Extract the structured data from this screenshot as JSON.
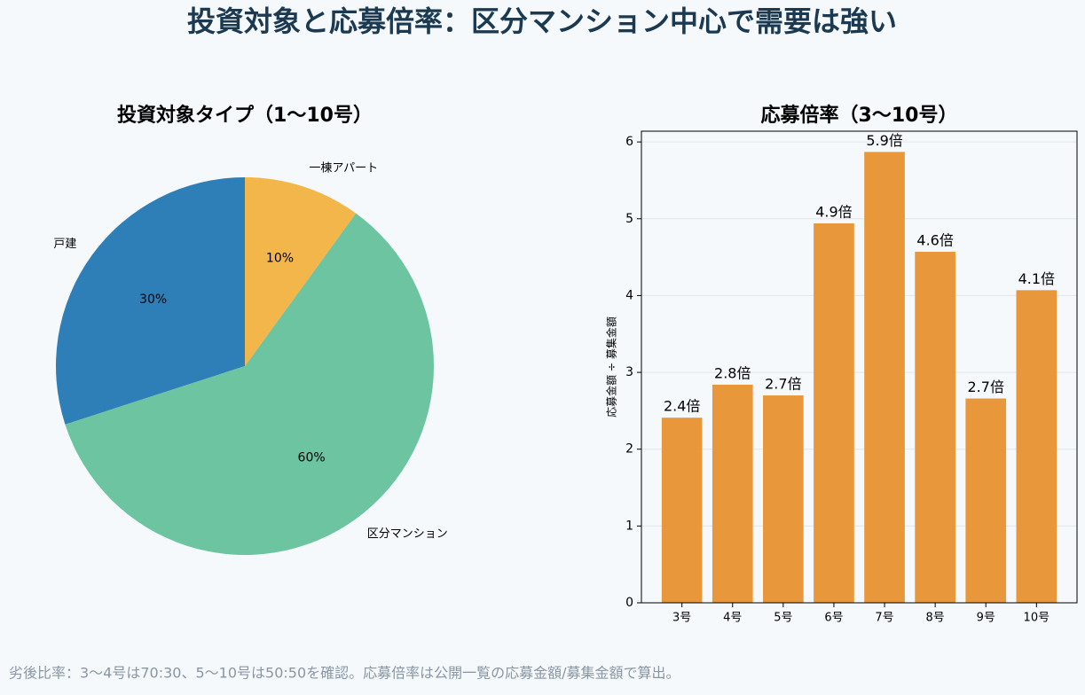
{
  "title": "投資対象と応募倍率：区分マンション中心で需要は強い",
  "note": "劣後比率：3〜4号は70:30、5〜10号は50:50を確認。応募倍率は公開一覧の応募金額/募集金額で算出。",
  "chart_data": [
    {
      "type": "pie",
      "title": "投資対象タイプ（1〜10号）",
      "categories": [
        "戸建",
        "区分マンション",
        "一棟アパート"
      ],
      "values": [
        30,
        60,
        10
      ],
      "value_labels": [
        "30%",
        "60%",
        "10%"
      ],
      "colors": [
        "#2e7fb8",
        "#6cc4a1",
        "#f2b64a"
      ]
    },
    {
      "type": "bar",
      "title": "応募倍率（3〜10号）",
      "ylabel": "応募金額 ÷ 募集金額",
      "categories": [
        "3号",
        "4号",
        "5号",
        "6号",
        "7号",
        "8号",
        "9号",
        "10号"
      ],
      "values": [
        2.41,
        2.84,
        2.7,
        4.94,
        5.87,
        4.57,
        2.66,
        4.07
      ],
      "value_labels": [
        "2.4倍",
        "2.8倍",
        "2.7倍",
        "4.9倍",
        "5.9倍",
        "4.6倍",
        "2.7倍",
        "4.1倍"
      ],
      "color": "#e8983b",
      "ylim": [
        0,
        6.14
      ],
      "yticks": [
        0,
        1,
        2,
        3,
        4,
        5,
        6
      ],
      "grid": true
    }
  ]
}
